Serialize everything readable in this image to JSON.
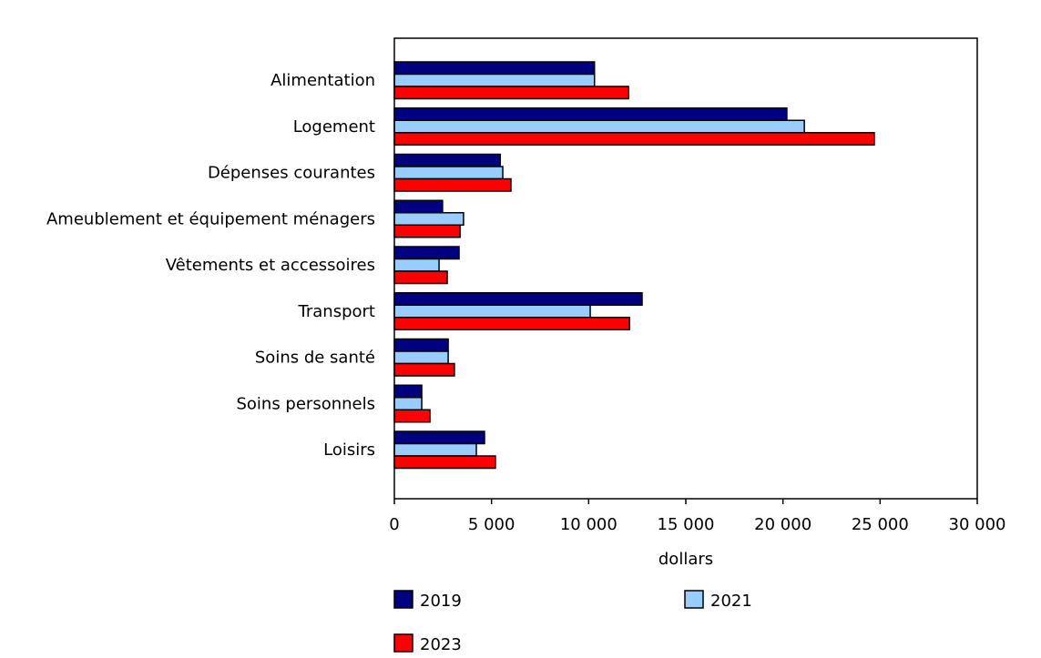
{
  "chart_data": {
    "type": "bar",
    "orientation": "horizontal",
    "title": "",
    "xlabel": "dollars",
    "ylabel": "",
    "xlim": [
      0,
      30000
    ],
    "xticks": [
      0,
      5000,
      10000,
      15000,
      20000,
      25000,
      30000
    ],
    "xtick_labels": [
      "0",
      "5 000",
      "10 000",
      "15 000",
      "20 000",
      "25 000",
      "30 000"
    ],
    "grid": false,
    "legend_placement": "bottom",
    "categories": [
      "Alimentation",
      "Logement",
      "Dépenses courantes",
      "Ameublement et équipement ménagers",
      "Vêtements et accessoires",
      "Transport",
      "Soins de santé",
      "Soins personnels",
      "Loisirs"
    ],
    "series": [
      {
        "name": "2019",
        "color": "#000080",
        "values": [
          10300,
          20200,
          5450,
          2480,
          3330,
          12750,
          2770,
          1410,
          4640
        ]
      },
      {
        "name": "2021",
        "color": "#99ccff",
        "values": [
          10300,
          21100,
          5580,
          3560,
          2300,
          10080,
          2770,
          1410,
          4220
        ]
      },
      {
        "name": "2023",
        "color": "#ff0000",
        "values": [
          12050,
          24700,
          6000,
          3380,
          2720,
          12100,
          3090,
          1830,
          5200
        ]
      }
    ]
  }
}
